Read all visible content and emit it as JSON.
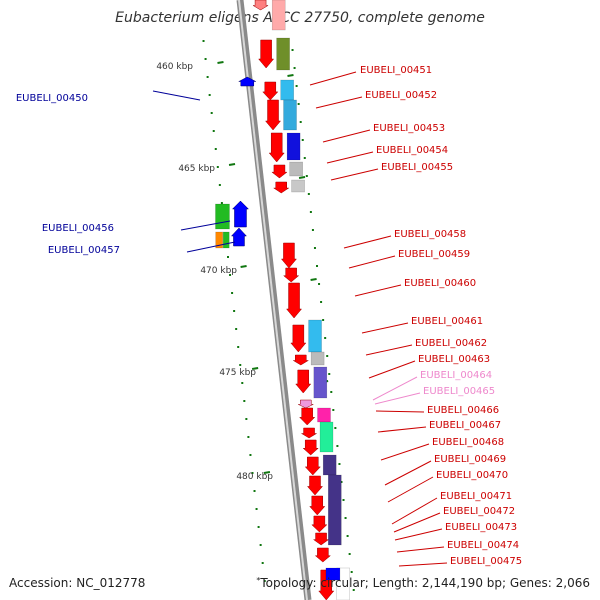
{
  "title": "Eubacterium eligens ATCC 27750, complete genome",
  "footer": {
    "accession": "Accession: NC_012778",
    "summary_mark": "*",
    "summary": "Topology: circular; Length: 2,144,190 bp; Genes: 2,066"
  },
  "colors": {
    "forward_strand": "#ff0000",
    "reverse_strand": "#0000ff",
    "label_forward": "#cc0000",
    "label_reverse": "#000099",
    "label_faded": "#ee88cc",
    "backbone": "#999999",
    "tick": "#117711"
  },
  "scale_labels": [
    "460 kbp",
    "465 kbp",
    "470 kbp",
    "475 kbp",
    "480 kbp"
  ],
  "genes": [
    {
      "label": "EUBELI_00450",
      "strand": "reverse"
    },
    {
      "label": "EUBELI_00451",
      "strand": "forward"
    },
    {
      "label": "EUBELI_00452",
      "strand": "forward"
    },
    {
      "label": "EUBELI_00453",
      "strand": "forward"
    },
    {
      "label": "EUBELI_00454",
      "strand": "forward"
    },
    {
      "label": "EUBELI_00455",
      "strand": "forward"
    },
    {
      "label": "EUBELI_00456",
      "strand": "reverse"
    },
    {
      "label": "EUBELI_00457",
      "strand": "reverse"
    },
    {
      "label": "EUBELI_00458",
      "strand": "forward"
    },
    {
      "label": "EUBELI_00459",
      "strand": "forward"
    },
    {
      "label": "EUBELI_00460",
      "strand": "forward"
    },
    {
      "label": "EUBELI_00461",
      "strand": "forward"
    },
    {
      "label": "EUBELI_00462",
      "strand": "forward"
    },
    {
      "label": "EUBELI_00463",
      "strand": "forward"
    },
    {
      "label": "EUBELI_00464",
      "strand": "forward",
      "faded": true
    },
    {
      "label": "EUBELI_00465",
      "strand": "forward",
      "faded": true
    },
    {
      "label": "EUBELI_00466",
      "strand": "forward"
    },
    {
      "label": "EUBELI_00467",
      "strand": "forward"
    },
    {
      "label": "EUBELI_00468",
      "strand": "forward"
    },
    {
      "label": "EUBELI_00469",
      "strand": "forward"
    },
    {
      "label": "EUBELI_00470",
      "strand": "forward"
    },
    {
      "label": "EUBELI_00471",
      "strand": "forward"
    },
    {
      "label": "EUBELI_00472",
      "strand": "forward"
    },
    {
      "label": "EUBELI_00473",
      "strand": "forward"
    },
    {
      "label": "EUBELI_00474",
      "strand": "forward"
    },
    {
      "label": "EUBELI_00475",
      "strand": "forward"
    }
  ]
}
